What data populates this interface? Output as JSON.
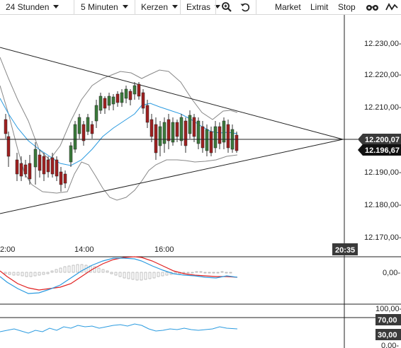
{
  "toolbar": {
    "range": "24 Stunden",
    "interval": "5 Minuten",
    "chart_style": "Kerzen",
    "extras": "Extras",
    "order_market": "Market",
    "order_limit": "Limit",
    "order_stop": "Stop",
    "icons": [
      "zoom-in-icon",
      "undo-icon",
      "glasses-icon",
      "line-chart-icon"
    ]
  },
  "price_axis": {
    "labels": [
      "12.230,00-",
      "12.220,00-",
      "12.210,00-",
      "12.190,00-",
      "12.180,00-",
      "12.170,00-"
    ],
    "tags": [
      {
        "text": "12.200,07",
        "color": "#3a3a3a"
      },
      {
        "text": "12.196,67",
        "color": "#111111"
      }
    ]
  },
  "time_axis": {
    "labels": [
      "2:00",
      "14:00",
      "16:00"
    ],
    "crosshair_time": "20:35"
  },
  "macd_axis": {
    "label": "0,00-"
  },
  "rsi_axis": {
    "labels": [
      "100,00-",
      "0,00-"
    ],
    "tags": [
      {
        "text": "70,00",
        "color": "#3a3a3a"
      },
      {
        "text": "30,00",
        "color": "#3a3a3a"
      }
    ]
  },
  "colors": {
    "up_candle": "#3b7a3b",
    "down_candle": "#a02020",
    "bollinger": "#888888",
    "moving_average": "#2b9be0",
    "macd_signal": "#e02020",
    "macd_line": "#2b9be0",
    "rsi_line": "#2b9be0"
  }
}
